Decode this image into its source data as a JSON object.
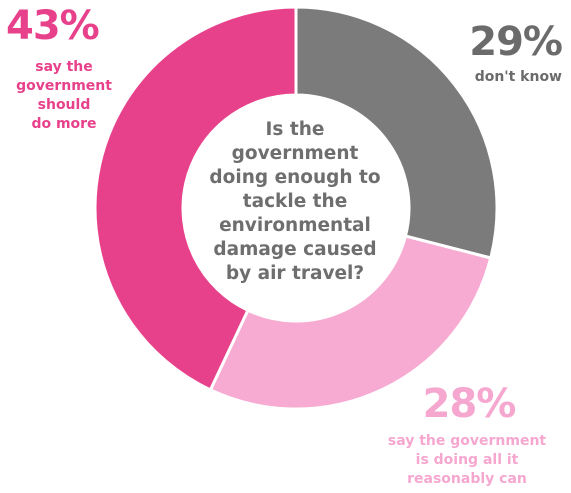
{
  "chart_data": {
    "type": "pie",
    "style": "donut",
    "title": "Is the government doing enough to tackle the environmental damage caused by air travel?",
    "title_lines": [
      "Is the",
      "government",
      "doing enough to",
      "tackle the",
      "environmental",
      "damage caused",
      "by air travel?"
    ],
    "slices": [
      {
        "label_lines": [
          "don't know"
        ],
        "value": 29,
        "value_label": "29%",
        "color": "#7b7b7b"
      },
      {
        "label_lines": [
          "say the government",
          "is doing all it",
          "reasonably can"
        ],
        "value": 28,
        "value_label": "28%",
        "color": "#f7aad2"
      },
      {
        "label_lines": [
          "say the",
          "government",
          "should",
          "do more"
        ],
        "value": 43,
        "value_label": "43%",
        "color": "#e8418b"
      }
    ],
    "legend": "none"
  }
}
